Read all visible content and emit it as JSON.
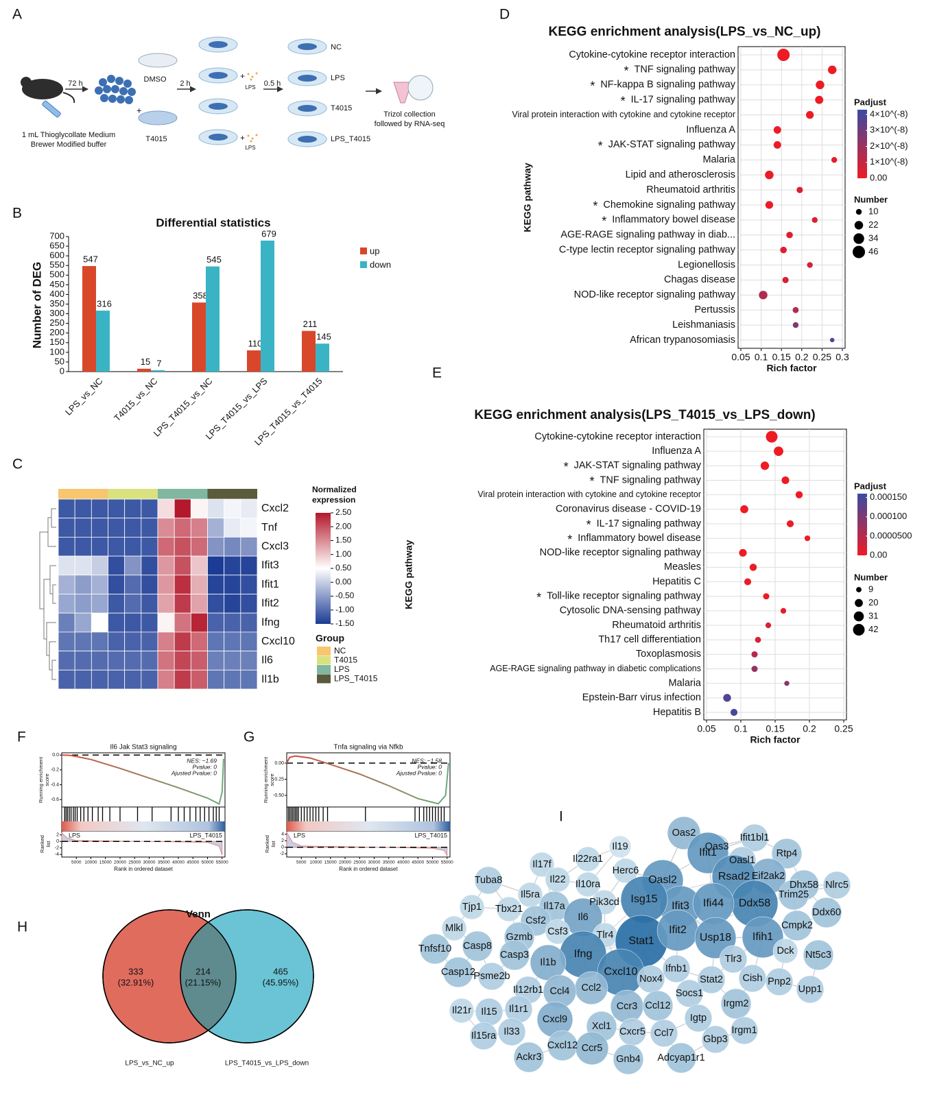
{
  "panel_labels": [
    "A",
    "B",
    "C",
    "D",
    "E",
    "F",
    "G",
    "H",
    "I"
  ],
  "schematic": {
    "injection": [
      "1 mL Thioglycollate Medium",
      "Brewer Modified buffer"
    ],
    "step1": "72 h",
    "pretreat": [
      "DMSO",
      "T4015"
    ],
    "step2": "2 h",
    "stimulus": "LPS",
    "step3": "0.5 h",
    "groups": [
      "NC",
      "LPS",
      "T4015",
      "LPS_T4015"
    ],
    "collection": [
      "Trizol collection",
      "followed by RNA-seq"
    ]
  },
  "chart_data": [
    {
      "type": "bar",
      "title": "Differential statistics",
      "y_label": "Number of DEG",
      "categories": [
        "LPS_vs_NC",
        "T4015_vs_NC",
        "LPS_T4015_vs_NC",
        "LPS_T4015_vs_LPS",
        "LPS_T4015_vs_T4015"
      ],
      "series": [
        {
          "name": "up",
          "color": "#d9472b",
          "values": [
            547,
            15,
            358,
            110,
            211
          ]
        },
        {
          "name": "down",
          "color": "#3ab4c4",
          "values": [
            316,
            7,
            545,
            679,
            145
          ]
        }
      ],
      "ylim": [
        0,
        700
      ],
      "yticks": [
        0,
        50,
        100,
        150,
        200,
        250,
        300,
        350,
        400,
        450,
        500,
        550,
        600,
        650,
        700
      ]
    },
    {
      "type": "heatmap",
      "rows": [
        "Cxcl2",
        "Tnf",
        "Cxcl3",
        "Ifit3",
        "Ifit1",
        "Ifit2",
        "Ifng",
        "Cxcl10",
        "Il6",
        "Il1b"
      ],
      "groups": [
        {
          "name": "NC",
          "color": "#f7c66f"
        },
        {
          "name": "T4015",
          "color": "#d9e27f"
        },
        {
          "name": "LPS",
          "color": "#7fb7a0"
        },
        {
          "name": "LPS_T4015",
          "color": "#5a5a3c"
        }
      ],
      "group_title": "Group",
      "colorbar_title": [
        "Normalized",
        "expression"
      ],
      "colorscale": [
        [
          -1.5,
          "#1b3b94"
        ],
        [
          0.5,
          "#ffffff"
        ],
        [
          2.5,
          "#b3182b"
        ]
      ],
      "zticks": [
        {
          "value": 2.5,
          "label": "2.50"
        },
        {
          "value": 2,
          "label": "2.00"
        },
        {
          "value": 1.5,
          "label": "1.50"
        },
        {
          "value": 1,
          "label": "1.00"
        },
        {
          "value": 0.5,
          "label": "0.50"
        },
        {
          "value": 0,
          "label": "0.00"
        },
        {
          "value": -0.5,
          "label": "-0.50"
        },
        {
          "value": -1,
          "label": "-1.00"
        },
        {
          "value": -1.5,
          "label": "-1.50"
        }
      ],
      "values": [
        [
          -1.2,
          -1.2,
          -1.2,
          -1.2,
          -1.2,
          -1.2,
          0.8,
          2.5,
          0.6,
          0.2,
          0.4,
          0.3
        ],
        [
          -1.2,
          -1.2,
          -1.2,
          -1.2,
          -1.2,
          -1.2,
          1.5,
          1.8,
          1.6,
          -0.3,
          0.3,
          0.4
        ],
        [
          -1.2,
          -1.2,
          -1.2,
          -1.2,
          -1.2,
          -1.2,
          1.8,
          2.0,
          1.8,
          -0.6,
          -0.7,
          -0.6
        ],
        [
          0.2,
          0.2,
          0.0,
          -1.3,
          -0.6,
          -1.3,
          1.4,
          2.0,
          1.0,
          -1.5,
          -1.4,
          -1.4
        ],
        [
          -0.3,
          -0.5,
          -0.3,
          -1.3,
          -1.0,
          -1.3,
          1.4,
          2.3,
          1.2,
          -1.4,
          -1.4,
          -1.3
        ],
        [
          -0.4,
          -0.5,
          -0.4,
          -1.2,
          -1.0,
          -1.2,
          1.3,
          2.2,
          1.3,
          -1.3,
          -1.4,
          -1.3
        ],
        [
          -0.8,
          -0.4,
          0.5,
          -1.2,
          -1.2,
          -1.2,
          0.6,
          1.7,
          2.4,
          -1.1,
          -1.1,
          -1.1
        ],
        [
          -0.9,
          -0.9,
          -0.9,
          -1.1,
          -1.1,
          -1.1,
          1.6,
          2.2,
          1.8,
          -0.9,
          -0.9,
          -0.9
        ],
        [
          -1.0,
          -1.0,
          -1.0,
          -1.0,
          -1.0,
          -1.0,
          1.7,
          2.1,
          1.9,
          -0.8,
          -0.8,
          -0.8
        ],
        [
          -1.1,
          -1.1,
          -1.1,
          -1.1,
          -1.1,
          -1.1,
          1.6,
          2.2,
          1.9,
          -0.9,
          -0.9,
          -0.9
        ]
      ]
    },
    {
      "type": "dot",
      "title": "KEGG enrichment analysis(LPS_vs_NC_up)",
      "x_label": "Rich factor",
      "y_label": "KEGG pathway",
      "star_symbol": "*",
      "categories": [
        "Cytokine-cytokine receptor interaction",
        "TNF signaling pathway",
        "NF-kappa B signaling pathway",
        "IL-17 signaling pathway",
        "Viral protein interaction with cytokine and cytokine receptor",
        "Influenza A",
        "JAK-STAT signaling pathway",
        "Malaria",
        "Lipid and atherosclerosis",
        "Rheumatoid arthritis",
        "Chemokine signaling pathway",
        "Inflammatory bowel disease",
        "AGE-RAGE signaling pathway in diab...",
        "C-type lectin receptor signaling pathway",
        "Legionellosis",
        "Chagas disease",
        "NOD-like receptor signaling pathway",
        "Pertussis",
        "Leishmaniasis",
        "African trypanosomiasis"
      ],
      "starred": [
        false,
        true,
        true,
        true,
        false,
        false,
        true,
        false,
        false,
        false,
        true,
        true,
        false,
        false,
        false,
        false,
        false,
        false,
        false,
        false
      ],
      "values": [
        0.155,
        0.275,
        0.245,
        0.243,
        0.22,
        0.14,
        0.14,
        0.28,
        0.12,
        0.195,
        0.12,
        0.232,
        0.17,
        0.155,
        0.22,
        0.16,
        0.105,
        0.185,
        0.185,
        0.275
      ],
      "sizes": [
        46,
        22,
        22,
        20,
        18,
        17,
        17,
        10,
        22,
        12,
        18,
        10,
        13,
        13,
        10,
        12,
        22,
        11,
        10,
        6
      ],
      "padjust": [
        2e-10,
        3e-10,
        3e-10,
        4e-10,
        5e-10,
        1e-09,
        1e-09,
        2e-09,
        1e-09,
        5e-09,
        1e-09,
        4e-09,
        3e-09,
        4e-09,
        8e-09,
        6e-09,
        1.5e-08,
        1.4e-08,
        2.6e-08,
        4e-08
      ],
      "xlim": [
        0.05,
        0.3
      ],
      "xticks": [
        0.05,
        0.1,
        0.15,
        0.2,
        0.25,
        0.3
      ],
      "color_title": "Padjust",
      "clim": [
        0,
        4.3e-08
      ],
      "colors": [
        "#ee1b24",
        "#3a4ba3"
      ],
      "cticks": [
        {
          "value": 4e-08,
          "label": "4×10^(-8)"
        },
        {
          "value": 3e-08,
          "label": "3×10^(-8)"
        },
        {
          "value": 2e-08,
          "label": "2×10^(-8)"
        },
        {
          "value": 1e-08,
          "label": "1×10^(-8)"
        },
        {
          "value": 0,
          "label": "0.00"
        }
      ],
      "size_title": "Number",
      "size_legend": [
        10,
        22,
        34,
        46
      ]
    },
    {
      "type": "dot",
      "title": "KEGG enrichment analysis(LPS_T4015_vs_LPS_down)",
      "x_label": "Rich  factor",
      "y_label": "KEGG pathway",
      "star_symbol": "*",
      "categories": [
        "Cytokine-cytokine receptor interaction",
        "Influenza A",
        "JAK-STAT signaling pathway",
        "TNF signaling pathway",
        "Viral protein interaction with cytokine and cytokine receptor",
        "Coronavirus disease - COVID-19",
        "IL-17 signaling pathway",
        "Inflammatory bowel disease",
        "NOD-like receptor signaling pathway",
        "Measles",
        "Hepatitis C",
        "Toll-like receptor signaling pathway",
        "Cytosolic DNA-sensing pathway",
        "Rheumatoid arthritis",
        "Th17 cell differentiation",
        "Toxoplasmosis",
        "AGE-RAGE signaling pathway in diabetic complications",
        "Malaria",
        "Epstein-Barr virus infection",
        "Hepatitis B"
      ],
      "starred": [
        false,
        false,
        true,
        true,
        false,
        false,
        true,
        true,
        false,
        false,
        false,
        true,
        false,
        false,
        false,
        false,
        false,
        false,
        false,
        false
      ],
      "values": [
        0.145,
        0.155,
        0.135,
        0.165,
        0.185,
        0.105,
        0.172,
        0.197,
        0.103,
        0.118,
        0.11,
        0.137,
        0.162,
        0.14,
        0.125,
        0.12,
        0.12,
        0.167,
        0.08,
        0.09
      ],
      "sizes": [
        42,
        28,
        22,
        18,
        16,
        20,
        15,
        10,
        18,
        16,
        15,
        12,
        10,
        10,
        11,
        12,
        12,
        8,
        19,
        15
      ],
      "padjust": [
        1e-07,
        1e-07,
        2e-07,
        3e-07,
        3e-07,
        5e-07,
        6e-07,
        2e-06,
        1e-06,
        2e-06,
        3e-06,
        4e-06,
        1e-05,
        2e-05,
        2e-05,
        5e-05,
        8e-05,
        9e-05,
        0.00014,
        0.00015
      ],
      "xlim": [
        0.05,
        0.25
      ],
      "xticks": [
        0.05,
        0.1,
        0.15,
        0.2,
        0.25
      ],
      "color_title": "Padjust",
      "clim": [
        0,
        0.00016
      ],
      "colors": [
        "#ee1b24",
        "#3a4ba3"
      ],
      "cticks": [
        {
          "value": 0.00015,
          "label": "0.000150"
        },
        {
          "value": 0.0001,
          "label": "0.000100"
        },
        {
          "value": 5e-05,
          "label": "0.0000500"
        },
        {
          "value": 0,
          "label": "0.00"
        }
      ],
      "size_title": "Number",
      "size_legend": [
        9,
        20,
        31,
        42
      ]
    },
    {
      "type": "gsea",
      "title": "Il6 Jak Stat3 signaling",
      "y_label": [
        "Running enrichment",
        "score"
      ],
      "rank_y_label": [
        "Ranked",
        "list"
      ],
      "x_label": "Rank in ordered dataset",
      "annotations": [
        "NES: −1.69",
        "Pvalue: 0",
        "Ajusted Pvalue: 0"
      ],
      "group_labels": [
        "LPS",
        "LPS_T4015"
      ],
      "color": "#d24b3c",
      "end_color": "#6aaa7a",
      "x": [
        0,
        3000,
        5000,
        10000,
        20000,
        30000,
        40000,
        50000,
        54000,
        55000,
        55500
      ],
      "values": [
        0,
        -0.005,
        -0.02,
        -0.06,
        -0.18,
        -0.31,
        -0.44,
        -0.58,
        -0.66,
        -0.5,
        -0.05
      ],
      "hits": [
        1000,
        1500,
        2000,
        2600,
        3200,
        4000,
        4600,
        5300,
        6500,
        7600,
        9000,
        10500,
        12500,
        14000,
        16500,
        20000,
        26000,
        31000,
        37500,
        40000,
        42000,
        44000,
        46000,
        47500,
        49000,
        50500,
        52000,
        53000,
        54000
      ],
      "rank_x": [
        0,
        2000,
        5000,
        50000,
        54000,
        55000
      ],
      "rank_values": [
        2.6,
        1,
        0.3,
        -0.3,
        -1.5,
        -4.2
      ],
      "xlim": [
        0,
        56000
      ],
      "xticks": [
        5000,
        10000,
        15000,
        20000,
        25000,
        30000,
        35000,
        40000,
        45000,
        50000,
        55000
      ],
      "ylim": [
        -0.7,
        0.03
      ],
      "yticks": [
        {
          "value": 0,
          "label": "0.0"
        },
        -0.2,
        -0.4,
        -0.6
      ],
      "rank_ylim": [
        -4.8,
        3.2
      ],
      "rank_yticks": [
        2,
        0,
        -2,
        -4
      ]
    },
    {
      "type": "gsea",
      "title": "Tnfa signaling via Nfkb",
      "y_label": [
        "Running enrichment",
        "score"
      ],
      "rank_y_label": [
        "Ranked",
        "list"
      ],
      "x_label": "Rank in ordered dataset",
      "annotations": [
        "NES: −1.58",
        "Pvalue: 0",
        "Ajusted Pvalue: 0"
      ],
      "group_labels": [
        "LPS",
        "LPS_T4015"
      ],
      "color": "#d24b3c",
      "end_color": "#6aaa7a",
      "x": [
        0,
        1000,
        3000,
        8000,
        15000,
        25000,
        35000,
        45000,
        52000,
        54500,
        55500
      ],
      "values": [
        0,
        0.09,
        0.11,
        0.08,
        -0.02,
        -0.17,
        -0.35,
        -0.55,
        -0.63,
        -0.5,
        0
      ],
      "hits": [
        500,
        1000,
        1500,
        2000,
        2500,
        3000,
        3500,
        4000,
        5000,
        6000,
        7000,
        8000,
        9000,
        10000,
        11000,
        12500,
        14000,
        27000,
        44000,
        45500,
        47000,
        48000,
        49000,
        50000,
        51000,
        52000,
        53000,
        54000
      ],
      "rank_x": [
        0,
        2000,
        5000,
        50000,
        54000,
        55000
      ],
      "rank_values": [
        4.6,
        1.5,
        0.4,
        -0.3,
        -1,
        -2.6
      ],
      "xlim": [
        0,
        56000
      ],
      "xticks": [
        5000,
        10000,
        15000,
        20000,
        25000,
        30000,
        35000,
        40000,
        45000,
        50000,
        55000
      ],
      "ylim": [
        -0.68,
        0.16
      ],
      "yticks": [
        {
          "value": 0,
          "label": "0.00"
        },
        -0.25,
        {
          "value": -0.5,
          "label": "-0.50"
        }
      ],
      "rank_ylim": [
        -3,
        5
      ],
      "rank_yticks": [
        4,
        2,
        0,
        -2
      ]
    }
  ],
  "venn": {
    "title": "Venn",
    "sets": [
      "LPS_vs_NC_up",
      "LPS_T4015_vs_LPS_down"
    ],
    "regions": [
      {
        "count": "333",
        "percent": "(32.91%)"
      },
      {
        "count": "214",
        "percent": "(21.15%)"
      },
      {
        "count": "465",
        "percent": "(45.95%)"
      }
    ]
  },
  "network": {
    "nodes": [
      "Ifit1bl1",
      "Oas3",
      "Oas2",
      "Rtp4",
      "Ifit1",
      "Oasl1",
      "Eif2ak2",
      "Dhx58",
      "Il19",
      "Il22ra1",
      "Rsad2",
      "Nlrc5",
      "Oasl2",
      "Herc6",
      "Il17f",
      "Il22",
      "Il10ra",
      "Tuba8",
      "Ifit3",
      "Trim25",
      "Isg15",
      "Ddx58",
      "Ddx60",
      "Il5ra",
      "Pik3cd",
      "Tjp1",
      "Tbx21",
      "Il17a",
      "Ifi44",
      "Cmpk2",
      "Csf2",
      "Il6",
      "Csf3",
      "Tlr4",
      "Mlkl",
      "Stat1",
      "Ifit2",
      "Usp18",
      "Ifih1",
      "Gzmb",
      "Casp8",
      "Tnfsf10",
      "Dck",
      "Nt5c3",
      "Ifng",
      "Casp3",
      "Il1b",
      "Tlr3",
      "Ifnb1",
      "Cxcl10",
      "Nox4",
      "Casp12",
      "Psme2b",
      "Il12rb1",
      "Cish",
      "Pnp2",
      "Stat2",
      "Upp1",
      "Ccl2",
      "Ccl4",
      "Socs1",
      "Ccr3",
      "Ccl12",
      "Il21r",
      "Il15",
      "Il1r1",
      "Irgm2",
      "Igtp",
      "Cxcl9",
      "Ccl7",
      "Cxcr5",
      "Xcl1",
      "Irgm1",
      "Gbp3",
      "Il33",
      "Il15ra",
      "Cxcl12",
      "Ccr5",
      "Ackr3",
      "Gnb4",
      "Adcyap1r1"
    ]
  }
}
